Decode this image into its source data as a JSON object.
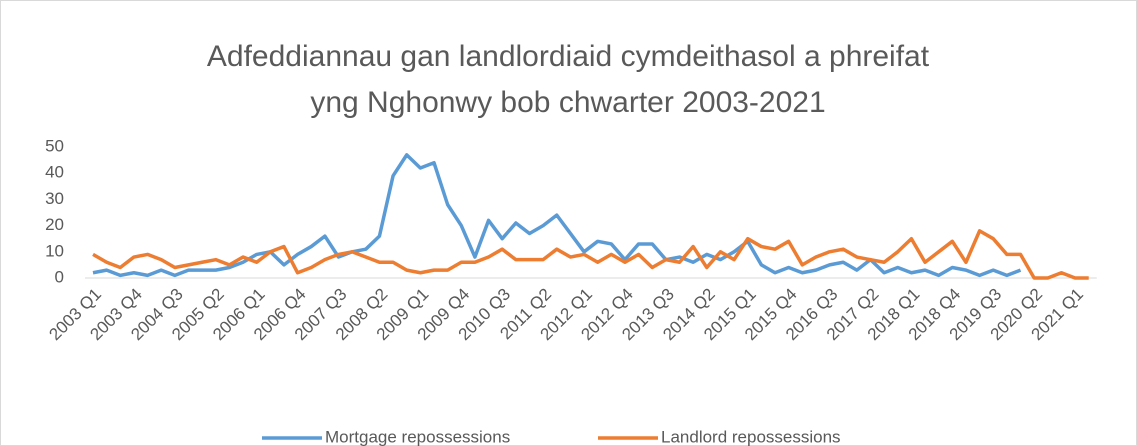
{
  "chart_data": {
    "type": "line",
    "title": [
      "Adfeddiannau gan landlordiaid cymdeithasol a phreifat",
      "yng Nghonwy bob chwarter 2003-2021"
    ],
    "categories": [
      "2003 Q1",
      null,
      null,
      "2003 Q4",
      null,
      null,
      "2004 Q3",
      null,
      null,
      "2005 Q2",
      null,
      null,
      "2006 Q1",
      null,
      null,
      "2006 Q4",
      null,
      null,
      "2007 Q3",
      null,
      null,
      "2008 Q2",
      null,
      null,
      "2009 Q1",
      null,
      null,
      "2009 Q4",
      null,
      null,
      "2010 Q3",
      null,
      null,
      "2011 Q2",
      null,
      null,
      "2012 Q1",
      null,
      null,
      "2012 Q4",
      null,
      null,
      "2013 Q3",
      null,
      null,
      "2014 Q2",
      null,
      null,
      "2015 Q1",
      null,
      null,
      "2015 Q4",
      null,
      null,
      "2016 Q3",
      null,
      null,
      "2017 Q2",
      null,
      null,
      "2018 Q1",
      null,
      null,
      "2018 Q4",
      null,
      null,
      "2019 Q3",
      null,
      null,
      "2020 Q2",
      null,
      null,
      "2021 Q1",
      null
    ],
    "series": [
      {
        "name": "Mortgage repossessions",
        "color": "#5b9bd5",
        "values": [
          2,
          3,
          1,
          2,
          1,
          3,
          1,
          3,
          3,
          3,
          4,
          6,
          9,
          10,
          5,
          9,
          12,
          16,
          8,
          10,
          11,
          16,
          39,
          47,
          42,
          44,
          28,
          20,
          8,
          22,
          15,
          21,
          17,
          20,
          24,
          17,
          10,
          14,
          13,
          7,
          13,
          13,
          7,
          8,
          6,
          9,
          7,
          10,
          14,
          5,
          2,
          4,
          2,
          3,
          5,
          6,
          3,
          7,
          2,
          4,
          2,
          3,
          1,
          4,
          3,
          1,
          3,
          1,
          3,
          null,
          null,
          null,
          null,
          null
        ]
      },
      {
        "name": "Landlord repossessions",
        "color": "#ed7d31",
        "values": [
          9,
          6,
          4,
          8,
          9,
          7,
          4,
          5,
          6,
          7,
          5,
          8,
          6,
          10,
          12,
          2,
          4,
          7,
          9,
          10,
          8,
          6,
          6,
          3,
          2,
          3,
          3,
          6,
          6,
          8,
          11,
          7,
          7,
          7,
          11,
          8,
          9,
          6,
          9,
          6,
          9,
          4,
          7,
          6,
          12,
          4,
          10,
          7,
          15,
          12,
          11,
          14,
          5,
          8,
          10,
          11,
          8,
          7,
          6,
          10,
          15,
          6,
          10,
          14,
          6,
          18,
          15,
          9,
          9,
          0,
          0,
          2,
          0,
          0
        ]
      }
    ],
    "ylim": [
      0,
      50
    ],
    "yticks": [
      0,
      10,
      20,
      30,
      40,
      50
    ],
    "grid": false,
    "legend": "bottom"
  }
}
